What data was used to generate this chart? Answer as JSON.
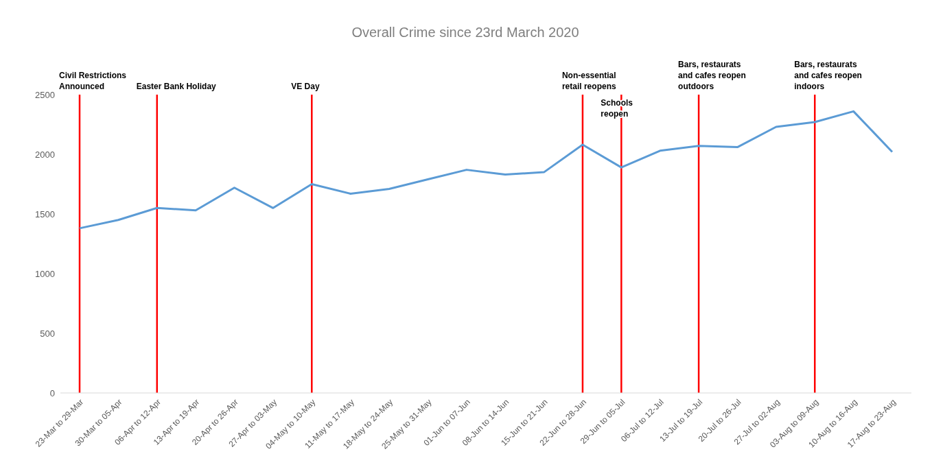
{
  "chart_data": {
    "type": "line",
    "title": "Overall Crime since 23rd March 2020",
    "categories": [
      "23-Mar to 29-Mar",
      "30-Mar to 05-Apr",
      "06-Apr to 12-Apr",
      "13-Apr to 19-Apr",
      "20-Apr to 26-Apr",
      "27-Apr to 03-May",
      "04-May to 10-May",
      "11-May to 17-May",
      "18-May to 24-May",
      "25-May to 31-May",
      "01-Jun to 07-Jun",
      "08-Jun to 14-Jun",
      "15-Jun to 21-Jun",
      "22-Jun to 28-Jun",
      "29-Jun to 05-Jul",
      "06-Jul to 12-Jul",
      "13-Jul to 19-Jul",
      "20-Jul to 26-Jul",
      "27-Jul to 02-Aug",
      "03-Aug to 09-Aug",
      "10-Aug to 16-Aug",
      "17-Aug to 23-Aug"
    ],
    "series": [
      {
        "color": "#5b9bd5",
        "values": [
          1380,
          1450,
          1550,
          1530,
          1720,
          1550,
          1750,
          1670,
          1710,
          1790,
          1870,
          1830,
          1850,
          2080,
          1890,
          2030,
          2070,
          2060,
          2230,
          2270,
          2360,
          2020
        ]
      }
    ],
    "ylim": [
      0,
      2500
    ],
    "yticks": [
      0,
      500,
      1000,
      1500,
      2000,
      2500
    ],
    "grid": false,
    "legend": false,
    "marker": "none",
    "line_style": "solid",
    "ref_lines": [
      {
        "axis": "x",
        "value": "23-Mar to 29-Mar",
        "label": "Civil Restrictions\nAnnounced",
        "color": "#ff0000"
      },
      {
        "axis": "x",
        "value": "06-Apr to 12-Apr",
        "label": "Easter Bank Holiday",
        "color": "#ff0000"
      },
      {
        "axis": "x",
        "value": "04-May to 10-May",
        "label": "VE Day",
        "color": "#ff0000"
      },
      {
        "axis": "x",
        "value": "22-Jun to 28-Jun",
        "label": "Non-essential\nretail reopens",
        "color": "#ff0000"
      },
      {
        "axis": "x",
        "value": "29-Jun to 05-Jul",
        "label": "Schools\nreopen",
        "color": "#ff0000"
      },
      {
        "axis": "x",
        "value": "13-Jul to 19-Jul",
        "label": "Bars, restaurats\nand cafes reopen\noutdoors",
        "color": "#ff0000"
      },
      {
        "axis": "x",
        "value": "03-Aug to 09-Aug",
        "label": "Bars, restaurats\nand cafes reopen\nindoors",
        "color": "#ff0000"
      }
    ]
  }
}
